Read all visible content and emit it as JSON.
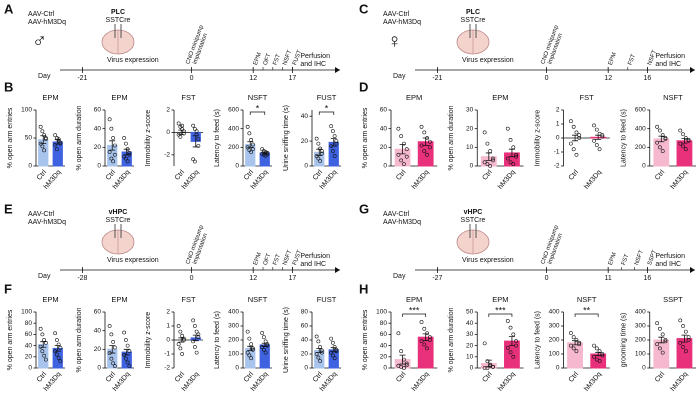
{
  "panels": [
    {
      "letter": "A",
      "virus": [
        "AAV-Ctrl",
        "AAV-hM3Dq"
      ],
      "sex": "♂",
      "region": "PLC",
      "mouse": "SSTCre",
      "day_label": "Day",
      "days": [
        "-21",
        "0",
        "12",
        "17"
      ],
      "expression": "Virus expression",
      "implant": [
        "CNO minipump",
        "implantation"
      ],
      "events": [
        "EPM",
        "OFT",
        "FST",
        "NSFT",
        "FUST"
      ],
      "end": [
        "Perfusion",
        "and IHC"
      ]
    },
    {
      "letter": "C",
      "virus": [
        "AAV-Ctrl",
        "AAV-hM3Dq"
      ],
      "sex": "♀",
      "region": "PLC",
      "mouse": "SSTCre",
      "day_label": "Day",
      "days": [
        "-21",
        "0",
        "12",
        "16"
      ],
      "expression": "Virus expression",
      "implant": [
        "CNO minipump",
        "implantation"
      ],
      "events": [
        "EPM",
        "FST",
        "NSFT"
      ],
      "end": [
        "Perfusion",
        "and IHC"
      ]
    },
    {
      "letter": "E",
      "virus": [
        "AAV-Ctrl",
        "AAV-hM3Dq"
      ],
      "region": "vHPC",
      "mouse": "SSTCre",
      "day_label": "Day",
      "days": [
        "-28",
        "0",
        "12",
        "17"
      ],
      "expression": "Virus expression",
      "implant": [
        "CNO minipump",
        "implantation"
      ],
      "events": [
        "EPM",
        "OFT",
        "FST",
        "NSFT",
        "FUST"
      ],
      "end": [
        "Perfusion",
        "and IHC"
      ]
    },
    {
      "letter": "G",
      "virus": [
        "AAV-Ctrl",
        "AAV-hM3Dq"
      ],
      "region": "vHPC",
      "mouse": "SSTCre",
      "day_label": "Day",
      "days": [
        "-27",
        "0",
        "11",
        "16"
      ],
      "expression": "Virus expression",
      "implant": [
        "CNO minipump",
        "implantation"
      ],
      "events": [
        "EPM",
        "FST",
        "NSFT",
        "SSPT"
      ],
      "end": [
        "Perfusion",
        "and IHC"
      ]
    }
  ],
  "chart_data": [
    {
      "type": "bar",
      "panel": "B",
      "title": "EPM",
      "ylabel": "% open arm entries",
      "categories": [
        "Ctrl",
        "hM3Dq"
      ],
      "colors": [
        "#a9c4ec",
        "#3f62e0"
      ],
      "values": [
        47,
        43
      ],
      "errors": [
        7,
        4
      ],
      "points": [
        [
          70,
          62,
          55,
          48,
          40,
          35,
          28,
          50
        ],
        [
          55,
          50,
          45,
          40,
          38,
          30,
          48,
          42
        ]
      ],
      "ylim": [
        0,
        100
      ],
      "yticks": [
        0,
        50,
        100
      ]
    },
    {
      "type": "bar",
      "title": "EPM",
      "ylabel": "% open arm duration",
      "categories": [
        "Ctrl",
        "hM3Dq"
      ],
      "colors": [
        "#a9c4ec",
        "#3f62e0"
      ],
      "values": [
        22,
        15
      ],
      "errors": [
        5,
        3
      ],
      "points": [
        [
          50,
          40,
          30,
          22,
          15,
          8,
          5,
          12
        ],
        [
          30,
          24,
          18,
          14,
          10,
          8,
          5,
          12
        ]
      ],
      "ylim": [
        0,
        60
      ],
      "yticks": [
        0,
        20,
        40,
        60
      ]
    },
    {
      "type": "bar",
      "title": "FST",
      "ylabel": "Immobility z-score",
      "categories": [
        "Ctrl",
        "hM3Dq"
      ],
      "colors": [
        "#a9c4ec",
        "#3f62e0"
      ],
      "values": [
        0,
        -0.8
      ],
      "errors": [
        0.2,
        0.5
      ],
      "points": [
        [
          0.8,
          0.5,
          0.3,
          0.1,
          -0.2,
          -0.4,
          0.6,
          -0.1
        ],
        [
          0.6,
          0.3,
          -0.2,
          -0.6,
          -2.4,
          -2.6,
          0.1,
          -1.2
        ]
      ],
      "ylim": [
        -3,
        2
      ],
      "yticks": [
        -2,
        0,
        2
      ]
    },
    {
      "type": "bar",
      "title": "NSFT",
      "ylabel": "Latency to feed (s)",
      "categories": [
        "Ctrl",
        "hM3Dq"
      ],
      "colors": [
        "#a9c4ec",
        "#3f62e0"
      ],
      "values": [
        230,
        140
      ],
      "errors": [
        30,
        10
      ],
      "points": [
        [
          420,
          350,
          280,
          230,
          200,
          170,
          150,
          180
        ],
        [
          180,
          160,
          150,
          140,
          130,
          120,
          110,
          125
        ]
      ],
      "ylim": [
        0,
        600
      ],
      "yticks": [
        0,
        200,
        400,
        600
      ],
      "sig": "*"
    },
    {
      "type": "bar",
      "title": "FUST",
      "ylabel": "Urine sniffing time (s)",
      "categories": [
        "Ctrl",
        "hM3Dq"
      ],
      "colors": [
        "#a9c4ec",
        "#3f62e0"
      ],
      "values": [
        11,
        19
      ],
      "errors": [
        2.5,
        3
      ],
      "points": [
        [
          22,
          18,
          14,
          10,
          8,
          6,
          4,
          12
        ],
        [
          32,
          28,
          24,
          20,
          16,
          12,
          8,
          18
        ]
      ],
      "ylim": [
        0,
        45
      ],
      "yticks": [
        0,
        20,
        40
      ],
      "sig": "*"
    },
    {
      "type": "bar",
      "panel": "D",
      "title": "EPM",
      "ylabel": "% open arm entries",
      "categories": [
        "Ctrl",
        "hM3Dq"
      ],
      "colors": [
        "#f5b8cf",
        "#e8307b"
      ],
      "values": [
        18,
        26
      ],
      "errors": [
        5,
        4
      ],
      "points": [
        [
          40,
          32,
          24,
          18,
          12,
          6,
          2,
          10
        ],
        [
          42,
          36,
          30,
          26,
          22,
          16,
          12,
          20
        ]
      ],
      "ylim": [
        0,
        60
      ],
      "yticks": [
        0,
        20,
        40,
        60
      ]
    },
    {
      "type": "bar",
      "title": "EPM",
      "ylabel": "% open arm duration",
      "categories": [
        "Ctrl",
        "hM3Dq"
      ],
      "colors": [
        "#f5b8cf",
        "#e8307b"
      ],
      "values": [
        5,
        7
      ],
      "errors": [
        2,
        2
      ],
      "points": [
        [
          18,
          12,
          8,
          4,
          2,
          1,
          0,
          3
        ],
        [
          20,
          14,
          10,
          6,
          4,
          2,
          1,
          5
        ]
      ],
      "ylim": [
        0,
        30
      ],
      "yticks": [
        0,
        10,
        20,
        30
      ]
    },
    {
      "type": "bar",
      "title": "FST",
      "ylabel": "Immobility z-score",
      "categories": [
        "Ctrl",
        "hM3Dq"
      ],
      "colors": [
        "#f5b8cf",
        "#e8307b"
      ],
      "values": [
        0,
        0.05
      ],
      "errors": [
        0.2,
        0.15
      ],
      "points": [
        [
          1.2,
          0.8,
          0.4,
          0,
          -0.4,
          -0.8,
          -1.2,
          0.2
        ],
        [
          0.9,
          0.6,
          0.3,
          0.1,
          -0.2,
          -0.5,
          -0.8,
          0.2
        ]
      ],
      "ylim": [
        -2,
        2
      ],
      "yticks": [
        -2,
        -1,
        0,
        1,
        2
      ]
    },
    {
      "type": "bar",
      "title": "NSFT",
      "ylabel": "Latency to feed (s)",
      "categories": [
        "Ctrl",
        "hM3Dq"
      ],
      "colors": [
        "#f5b8cf",
        "#e8307b"
      ],
      "values": [
        290,
        270
      ],
      "errors": [
        30,
        25
      ],
      "points": [
        [
          420,
          380,
          330,
          290,
          250,
          200,
          160,
          300
        ],
        [
          380,
          340,
          300,
          270,
          240,
          210,
          180,
          280
        ]
      ],
      "ylim": [
        0,
        600
      ],
      "yticks": [
        0,
        200,
        400,
        600
      ]
    },
    {
      "type": "bar",
      "panel": "F",
      "title": "EPM",
      "ylabel": "% open arm entries",
      "categories": [
        "Ctrl",
        "hM3Dq"
      ],
      "colors": [
        "#a9c4ec",
        "#3f62e0"
      ],
      "values": [
        42,
        35
      ],
      "errors": [
        5,
        5
      ],
      "points": [
        [
          70,
          60,
          50,
          45,
          38,
          30,
          22,
          15
        ],
        [
          62,
          50,
          42,
          36,
          30,
          24,
          18,
          12
        ]
      ],
      "ylim": [
        0,
        100
      ],
      "yticks": [
        0,
        20,
        40,
        60,
        80,
        100
      ]
    },
    {
      "type": "bar",
      "title": "EPM",
      "ylabel": "% open arm duration",
      "categories": [
        "Ctrl",
        "hM3Dq"
      ],
      "colors": [
        "#a9c4ec",
        "#3f62e0"
      ],
      "values": [
        20,
        17
      ],
      "errors": [
        4,
        3
      ],
      "points": [
        [
          45,
          36,
          28,
          22,
          16,
          10,
          5,
          2
        ],
        [
          38,
          30,
          24,
          18,
          14,
          10,
          6,
          2
        ]
      ],
      "ylim": [
        0,
        60
      ],
      "yticks": [
        0,
        20,
        40,
        60
      ]
    },
    {
      "type": "bar",
      "title": "FST",
      "ylabel": "Immobility z-score",
      "categories": [
        "Ctrl",
        "hM3Dq"
      ],
      "colors": [
        "#a9c4ec",
        "#3f62e0"
      ],
      "values": [
        0,
        0.15
      ],
      "errors": [
        0.15,
        0.2
      ],
      "points": [
        [
          1,
          0.6,
          0.3,
          0,
          -0.3,
          -0.6,
          -1,
          0.1
        ],
        [
          1.4,
          1,
          0.6,
          0.2,
          -0.1,
          -0.5,
          -0.9,
          0.4
        ]
      ],
      "ylim": [
        -2,
        2
      ],
      "yticks": [
        -2,
        -1,
        0,
        1,
        2
      ]
    },
    {
      "type": "bar",
      "title": "NSFT",
      "ylabel": "Latency to feed (s)",
      "categories": [
        "Ctrl",
        "hM3Dq"
      ],
      "colors": [
        "#a9c4ec",
        "#3f62e0"
      ],
      "values": [
        140,
        165
      ],
      "errors": [
        15,
        12
      ],
      "points": [
        [
          260,
          210,
          170,
          140,
          110,
          90,
          70,
          130
        ],
        [
          250,
          220,
          190,
          170,
          150,
          130,
          110,
          160
        ]
      ],
      "ylim": [
        0,
        400
      ],
      "yticks": [
        0,
        100,
        200,
        300,
        400
      ]
    },
    {
      "type": "bar",
      "title": "FUST",
      "ylabel": "Urine sniffing time (s)",
      "categories": [
        "Ctrl",
        "hM3Dq"
      ],
      "colors": [
        "#a9c4ec",
        "#3f62e0"
      ],
      "values": [
        25,
        26
      ],
      "errors": [
        3,
        3
      ],
      "points": [
        [
          45,
          38,
          30,
          25,
          20,
          15,
          10,
          22
        ],
        [
          42,
          36,
          30,
          26,
          22,
          18,
          14,
          24
        ]
      ],
      "ylim": [
        0,
        80
      ],
      "yticks": [
        0,
        20,
        40,
        60,
        80
      ]
    },
    {
      "type": "bar",
      "panel": "H",
      "title": "EPM",
      "ylabel": "% open arm entries",
      "categories": [
        "Ctrl",
        "hM3Dq"
      ],
      "colors": [
        "#f5b8cf",
        "#e8307b"
      ],
      "values": [
        15,
        55
      ],
      "errors": [
        8,
        6
      ],
      "points": [
        [
          62,
          30,
          15,
          8,
          4,
          2,
          0,
          5
        ],
        [
          82,
          70,
          62,
          55,
          48,
          42,
          35,
          50
        ]
      ],
      "ylim": [
        0,
        100
      ],
      "yticks": [
        0,
        20,
        40,
        60,
        80,
        100
      ],
      "sig": "***"
    },
    {
      "type": "bar",
      "title": "EPM",
      "ylabel": "% open arm duration",
      "categories": [
        "Ctrl",
        "hM3Dq"
      ],
      "colors": [
        "#f5b8cf",
        "#e8307b"
      ],
      "values": [
        4,
        24
      ],
      "errors": [
        3,
        4
      ],
      "points": [
        [
          22,
          6,
          3,
          1,
          0,
          0,
          2,
          1
        ],
        [
          42,
          36,
          30,
          24,
          18,
          14,
          10,
          20
        ]
      ],
      "ylim": [
        0,
        50
      ],
      "yticks": [
        0,
        10,
        20,
        30,
        40,
        50
      ],
      "sig": "***"
    },
    {
      "type": "bar",
      "title": "NSFT",
      "ylabel": "Latency to feed (s)",
      "categories": [
        "Ctrl",
        "hM3Dq"
      ],
      "colors": [
        "#f5b8cf",
        "#e8307b"
      ],
      "values": [
        180,
        100
      ],
      "errors": [
        15,
        12
      ],
      "points": [
        [
          250,
          220,
          200,
          180,
          160,
          140,
          120,
          170
        ],
        [
          160,
          140,
          120,
          100,
          80,
          60,
          50,
          90
        ]
      ],
      "ylim": [
        0,
        400
      ],
      "yticks": [
        0,
        100,
        200,
        300,
        400
      ],
      "sig": "**"
    },
    {
      "type": "bar",
      "title": "SSPT",
      "ylabel": "grooming time (s)",
      "categories": [
        "Ctrl",
        "hM3Dq"
      ],
      "colors": [
        "#f5b8cf",
        "#e8307b"
      ],
      "values": [
        200,
        210
      ],
      "errors": [
        20,
        25
      ],
      "points": [
        [
          320,
          280,
          240,
          200,
          170,
          140,
          110,
          190
        ],
        [
          340,
          300,
          260,
          220,
          180,
          150,
          120,
          200
        ]
      ],
      "ylim": [
        0,
        400
      ],
      "yticks": [
        0,
        100,
        200,
        300,
        400
      ]
    }
  ]
}
